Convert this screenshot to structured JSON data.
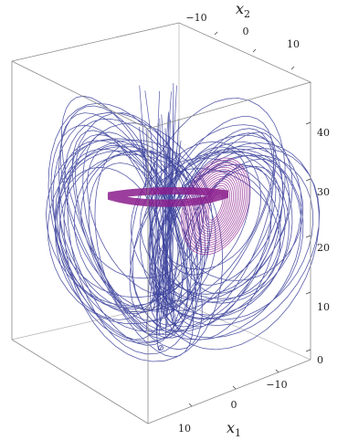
{
  "chart_data": {
    "type": "line",
    "projection": "3d",
    "title": "",
    "axes": {
      "x1": {
        "label_base": "x",
        "label_sub": "1",
        "ticks": [
          "10",
          "0",
          "−10"
        ]
      },
      "x2": {
        "label_base": "x",
        "label_sub": "2",
        "ticks": [
          "−10",
          "0",
          "10"
        ]
      },
      "x3": {
        "label_base": "",
        "label_sub": "",
        "ticks": [
          "0",
          "10",
          "20",
          "30",
          "40"
        ],
        "ylim": [
          0,
          48
        ]
      }
    },
    "series": [
      {
        "kind": "chaotic-butterfly-attractor",
        "color": "#3a3f9a",
        "x3_range": [
          0,
          48
        ]
      },
      {
        "kind": "limit-cycle-and-spiral",
        "color": "#8a1c8c",
        "x3_range": [
          22,
          37
        ]
      }
    ],
    "colors": {
      "series_1": "#3a3f9a",
      "series_2": "#8a1c8c",
      "box": "#8a8a8a"
    }
  }
}
